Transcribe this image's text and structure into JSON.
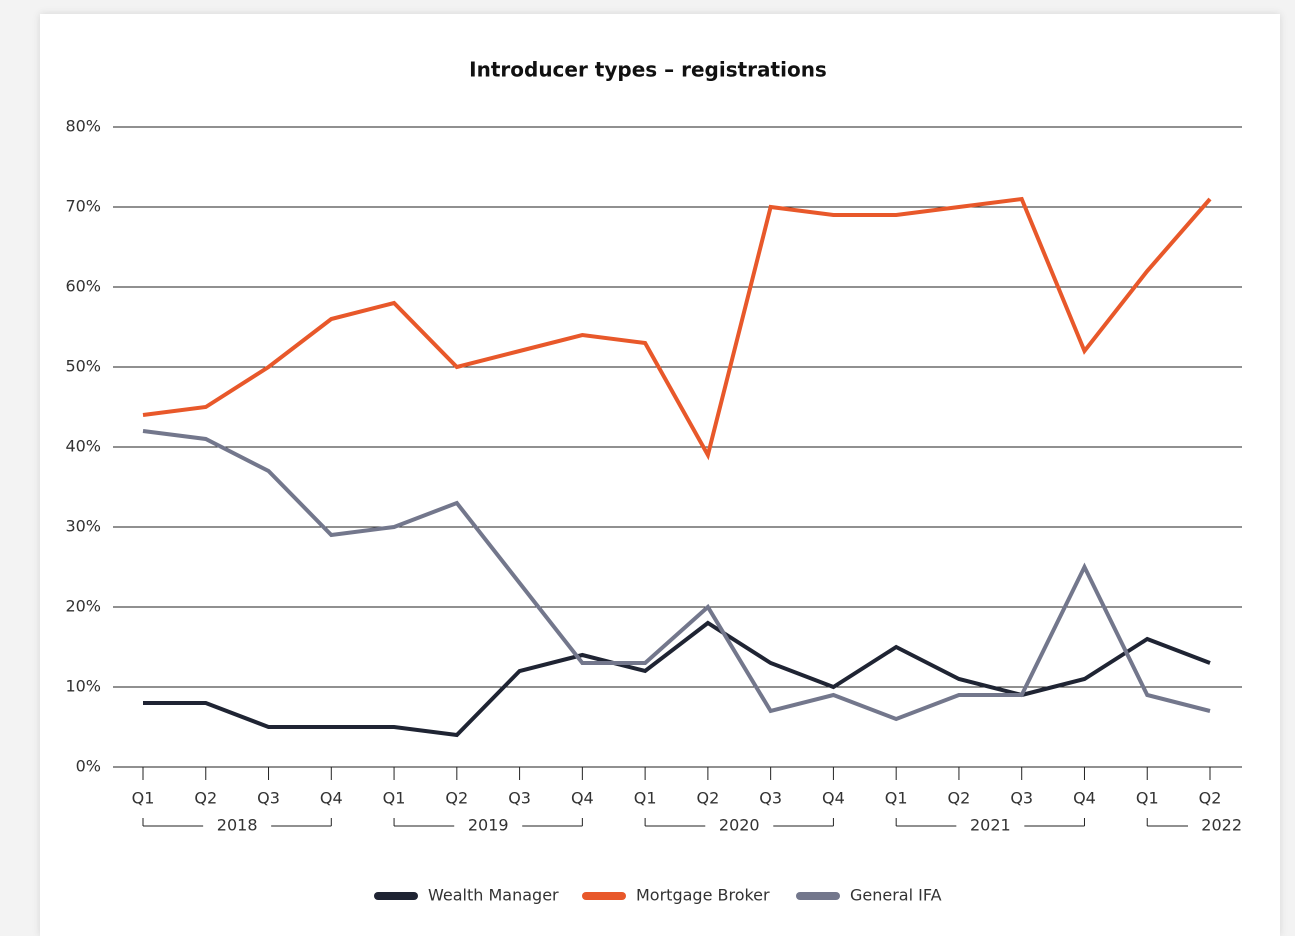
{
  "chart_data": {
    "type": "line",
    "title": "Introducer types – registrations",
    "categories": [
      "Q1",
      "Q2",
      "Q3",
      "Q4",
      "Q1",
      "Q2",
      "Q3",
      "Q4",
      "Q1",
      "Q2",
      "Q3",
      "Q4",
      "Q1",
      "Q2",
      "Q3",
      "Q4",
      "Q1",
      "Q2"
    ],
    "year_groups": [
      {
        "label": "2018",
        "span": [
          0,
          3
        ]
      },
      {
        "label": "2019",
        "span": [
          4,
          7
        ]
      },
      {
        "label": "2020",
        "span": [
          8,
          11
        ]
      },
      {
        "label": "2021",
        "span": [
          12,
          15
        ]
      },
      {
        "label": "2022",
        "span": [
          16,
          17
        ]
      }
    ],
    "series": [
      {
        "name": "Wealth Manager",
        "color": "#1f2433",
        "values": [
          8,
          8,
          5,
          5,
          5,
          4,
          12,
          14,
          12,
          18,
          13,
          10,
          15,
          11,
          9,
          11,
          16,
          13
        ]
      },
      {
        "name": "Mortgage Broker",
        "color": "#e8582a",
        "values": [
          44,
          45,
          50,
          56,
          58,
          50,
          52,
          54,
          53,
          39,
          70,
          69,
          69,
          70,
          71,
          52,
          62,
          71
        ]
      },
      {
        "name": "General IFA",
        "color": "#73778c",
        "values": [
          42,
          41,
          37,
          29,
          30,
          33,
          23,
          13,
          13,
          20,
          7,
          9,
          6,
          9,
          9,
          25,
          9,
          7
        ]
      }
    ],
    "ylim": [
      0,
      80
    ],
    "yticks": [
      {
        "value": 0,
        "label": "0%"
      },
      {
        "value": 10,
        "label": "10%"
      },
      {
        "value": 20,
        "label": "20%"
      },
      {
        "value": 30,
        "label": "30%"
      },
      {
        "value": 40,
        "label": "40%"
      },
      {
        "value": 50,
        "label": "50%"
      },
      {
        "value": 60,
        "label": "60%"
      },
      {
        "value": 70,
        "label": "70%"
      },
      {
        "value": 80,
        "label": "80%"
      }
    ],
    "grid": true,
    "legend": "bottom"
  }
}
